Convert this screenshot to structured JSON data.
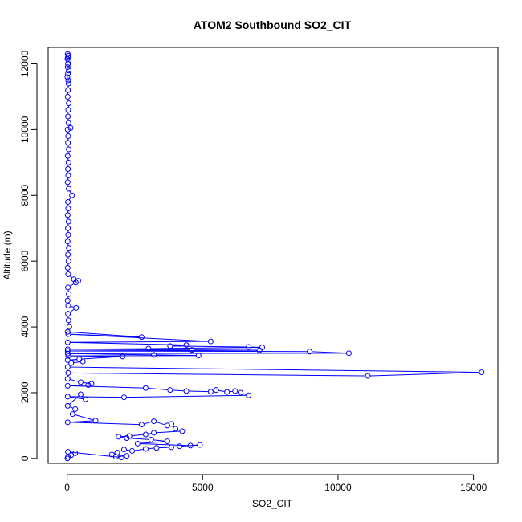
{
  "chart_data": {
    "type": "line",
    "title": "ATOM2 Southbound SO2_CIT",
    "xlabel": "SO2_CIT",
    "ylabel": "Altitude (m)",
    "xlim": [
      -700,
      15900
    ],
    "ylim": [
      -150,
      12500
    ],
    "xticks": [
      0,
      5000,
      10000,
      15000
    ],
    "yticks": [
      0,
      2000,
      4000,
      6000,
      8000,
      10000,
      12000
    ],
    "grid": false,
    "legend": "none",
    "series": [
      {
        "color": "#0000ff",
        "marker": "open-circle",
        "points": [
          [
            20,
            12300
          ],
          [
            40,
            12250
          ],
          [
            30,
            12200
          ],
          [
            10,
            12150
          ],
          [
            50,
            12100
          ],
          [
            30,
            12000
          ],
          [
            20,
            11900
          ],
          [
            60,
            11800
          ],
          [
            30,
            11700
          ],
          [
            10,
            11600
          ],
          [
            40,
            11500
          ],
          [
            50,
            11400
          ],
          [
            30,
            11200
          ],
          [
            20,
            11000
          ],
          [
            60,
            10800
          ],
          [
            40,
            10600
          ],
          [
            30,
            10400
          ],
          [
            50,
            10200
          ],
          [
            130,
            10050
          ],
          [
            20,
            10000
          ],
          [
            40,
            9800
          ],
          [
            30,
            9600
          ],
          [
            60,
            9400
          ],
          [
            20,
            9200
          ],
          [
            50,
            9000
          ],
          [
            30,
            8800
          ],
          [
            40,
            8600
          ],
          [
            20,
            8400
          ],
          [
            60,
            8200
          ],
          [
            180,
            8000
          ],
          [
            30,
            7800
          ],
          [
            40,
            7600
          ],
          [
            20,
            7400
          ],
          [
            50,
            7200
          ],
          [
            30,
            7000
          ],
          [
            40,
            6800
          ],
          [
            20,
            6600
          ],
          [
            60,
            6400
          ],
          [
            30,
            6200
          ],
          [
            50,
            6000
          ],
          [
            20,
            5800
          ],
          [
            40,
            5600
          ],
          [
            250,
            5450
          ],
          [
            410,
            5400
          ],
          [
            320,
            5350
          ],
          [
            30,
            5200
          ],
          [
            60,
            5000
          ],
          [
            20,
            4800
          ],
          [
            40,
            4650
          ],
          [
            330,
            4580
          ],
          [
            30,
            4400
          ],
          [
            50,
            4200
          ],
          [
            80,
            4000
          ],
          [
            20,
            3850
          ],
          [
            2750,
            3690
          ],
          [
            40,
            3780
          ],
          [
            5300,
            3560
          ],
          [
            20,
            3530
          ],
          [
            4400,
            3450
          ],
          [
            3800,
            3420
          ],
          [
            6700,
            3390
          ],
          [
            7200,
            3380
          ],
          [
            3000,
            3340
          ],
          [
            20,
            3320
          ],
          [
            4600,
            3300
          ],
          [
            7100,
            3290
          ],
          [
            20,
            3270
          ],
          [
            8950,
            3250
          ],
          [
            10400,
            3200
          ],
          [
            20,
            3190
          ],
          [
            3200,
            3150
          ],
          [
            4850,
            3130
          ],
          [
            40,
            3120
          ],
          [
            2050,
            3100
          ],
          [
            450,
            3020
          ],
          [
            20,
            2990
          ],
          [
            580,
            2950
          ],
          [
            150,
            2900
          ],
          [
            20,
            2780
          ],
          [
            15300,
            2620
          ],
          [
            11100,
            2510
          ],
          [
            40,
            2600
          ],
          [
            20,
            2420
          ],
          [
            500,
            2320
          ],
          [
            900,
            2270
          ],
          [
            780,
            2230
          ],
          [
            20,
            2210
          ],
          [
            2900,
            2140
          ],
          [
            3800,
            2080
          ],
          [
            4400,
            2050
          ],
          [
            5300,
            2030
          ],
          [
            5500,
            2080
          ],
          [
            5900,
            2020
          ],
          [
            6200,
            2050
          ],
          [
            6400,
            2000
          ],
          [
            6700,
            1920
          ],
          [
            2100,
            1860
          ],
          [
            20,
            1880
          ],
          [
            680,
            1800
          ],
          [
            500,
            1950
          ],
          [
            20,
            1600
          ],
          [
            300,
            1500
          ],
          [
            200,
            1350
          ],
          [
            1050,
            1150
          ],
          [
            20,
            1100
          ],
          [
            2750,
            1030
          ],
          [
            3200,
            1130
          ],
          [
            3700,
            1000
          ],
          [
            3850,
            1050
          ],
          [
            4000,
            900
          ],
          [
            4250,
            830
          ],
          [
            3200,
            780
          ],
          [
            2900,
            730
          ],
          [
            2300,
            680
          ],
          [
            1900,
            660
          ],
          [
            2200,
            620
          ],
          [
            3100,
            570
          ],
          [
            3700,
            520
          ],
          [
            2600,
            450
          ],
          [
            4550,
            390
          ],
          [
            4900,
            410
          ],
          [
            4150,
            370
          ],
          [
            3850,
            340
          ],
          [
            3300,
            320
          ],
          [
            2900,
            290
          ],
          [
            2400,
            230
          ],
          [
            2100,
            270
          ],
          [
            1850,
            180
          ],
          [
            1650,
            120
          ],
          [
            2200,
            80
          ],
          [
            1800,
            50
          ],
          [
            2000,
            30
          ],
          [
            30,
            200
          ],
          [
            300,
            160
          ],
          [
            150,
            100
          ],
          [
            30,
            50
          ],
          [
            10,
            0
          ]
        ]
      }
    ]
  }
}
